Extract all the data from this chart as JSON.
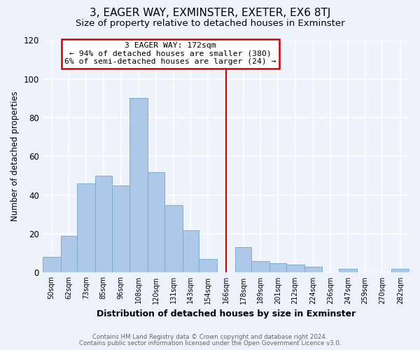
{
  "title": "3, EAGER WAY, EXMINSTER, EXETER, EX6 8TJ",
  "subtitle": "Size of property relative to detached houses in Exminster",
  "xlabel": "Distribution of detached houses by size in Exminster",
  "ylabel": "Number of detached properties",
  "footer_line1": "Contains HM Land Registry data © Crown copyright and database right 2024.",
  "footer_line2": "Contains public sector information licensed under the Open Government Licence v3.0.",
  "bin_labels": [
    "50sqm",
    "62sqm",
    "73sqm",
    "85sqm",
    "96sqm",
    "108sqm",
    "120sqm",
    "131sqm",
    "143sqm",
    "154sqm",
    "166sqm",
    "178sqm",
    "189sqm",
    "201sqm",
    "212sqm",
    "224sqm",
    "236sqm",
    "247sqm",
    "259sqm",
    "270sqm",
    "282sqm"
  ],
  "bin_edges": [
    50,
    62,
    73,
    85,
    96,
    108,
    120,
    131,
    143,
    154,
    166,
    178,
    189,
    201,
    212,
    224,
    236,
    247,
    259,
    270,
    282,
    294
  ],
  "bar_heights": [
    8,
    19,
    46,
    50,
    45,
    90,
    52,
    35,
    22,
    7,
    0,
    13,
    6,
    5,
    4,
    3,
    0,
    2,
    0,
    0,
    2
  ],
  "bar_color": "#adc8e8",
  "bar_edge_color": "#7aaecf",
  "vline_x": 172,
  "vline_color": "#cc0000",
  "annotation_title": "3 EAGER WAY: 172sqm",
  "annotation_line1": "← 94% of detached houses are smaller (380)",
  "annotation_line2": "6% of semi-detached houses are larger (24) →",
  "annotation_box_color": "#ffffff",
  "annotation_box_edge_color": "#cc0000",
  "ylim": [
    0,
    120
  ],
  "yticks": [
    0,
    20,
    40,
    60,
    80,
    100,
    120
  ],
  "bg_color": "#eef2fb",
  "grid_color": "#ffffff",
  "title_fontsize": 11,
  "subtitle_fontsize": 9.5
}
